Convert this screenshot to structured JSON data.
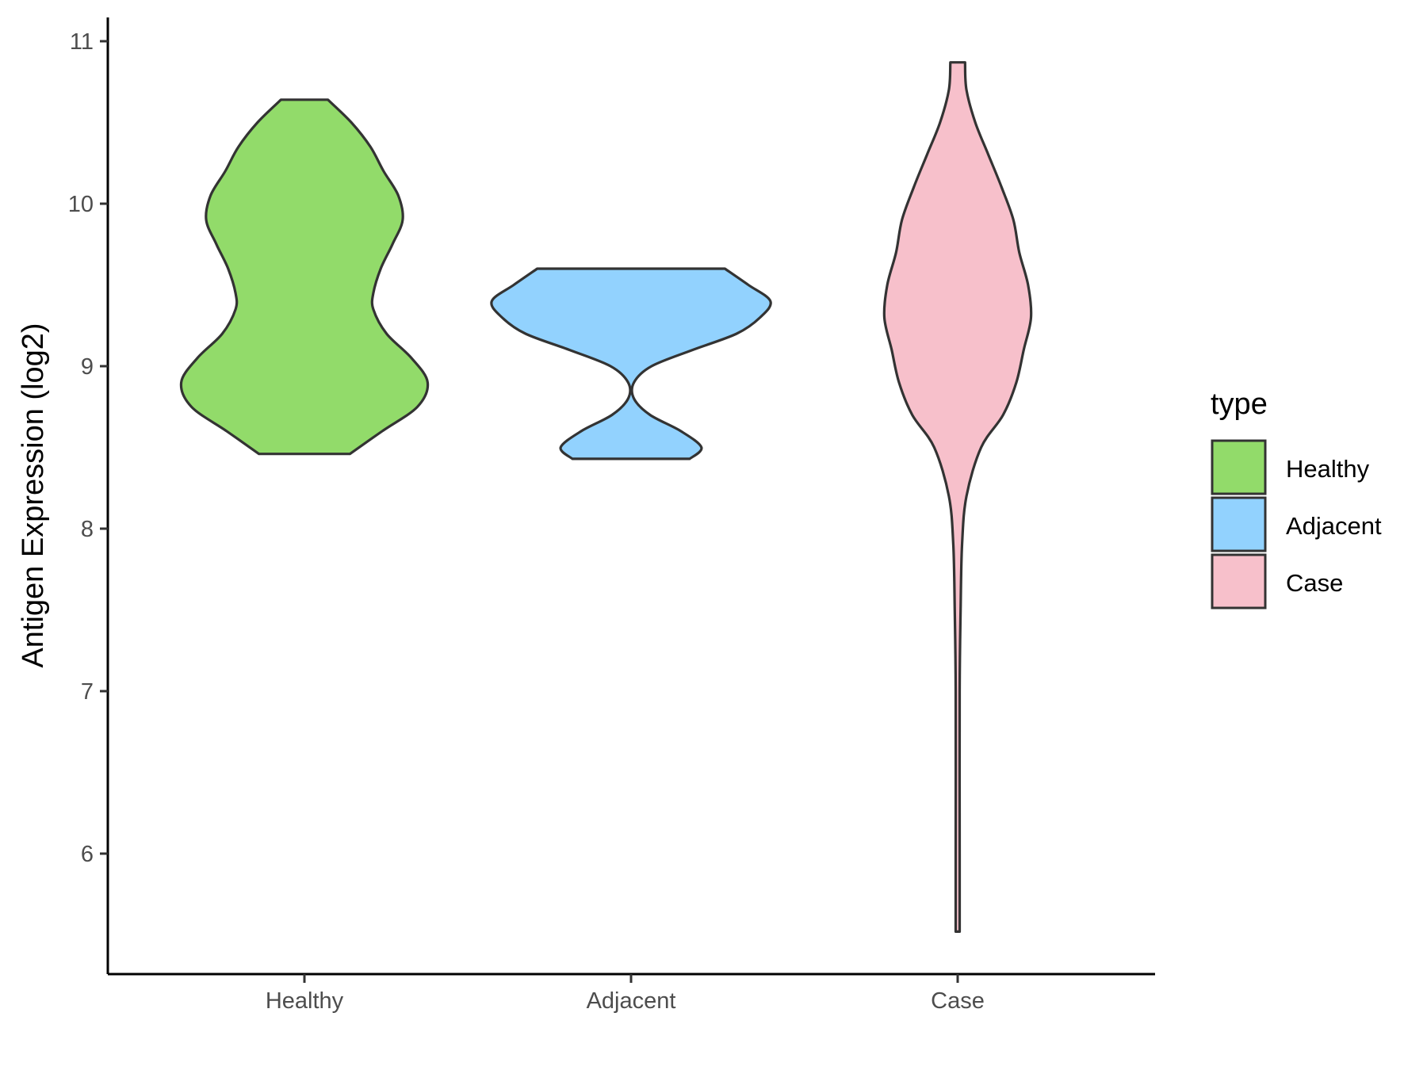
{
  "chart_data": {
    "type": "violin",
    "title": "",
    "xlabel": "",
    "ylabel": "Antigen Expression (log2)",
    "ylim": [
      5.3,
      11.15
    ],
    "yticks": [
      6,
      7,
      8,
      9,
      10,
      11
    ],
    "categories": [
      "Healthy",
      "Adjacent",
      "Case"
    ],
    "legend": {
      "title": "type",
      "position": "right",
      "entries": [
        "Healthy",
        "Adjacent",
        "Case"
      ]
    },
    "colors": {
      "Healthy": "#92db6a",
      "Adjacent": "#92d2fe",
      "Case": "#f7c0cb",
      "outline": "#333333"
    },
    "series": [
      {
        "name": "Healthy",
        "min": 8.46,
        "max": 10.64,
        "density": [
          [
            8.46,
            0.31
          ],
          [
            8.6,
            0.53
          ],
          [
            8.75,
            0.77
          ],
          [
            8.9,
            0.84
          ],
          [
            9.05,
            0.73
          ],
          [
            9.2,
            0.56
          ],
          [
            9.35,
            0.47
          ],
          [
            9.45,
            0.47
          ],
          [
            9.6,
            0.52
          ],
          [
            9.75,
            0.6
          ],
          [
            9.9,
            0.67
          ],
          [
            10.05,
            0.64
          ],
          [
            10.2,
            0.54
          ],
          [
            10.35,
            0.45
          ],
          [
            10.5,
            0.32
          ],
          [
            10.64,
            0.16
          ]
        ]
      },
      {
        "name": "Adjacent",
        "min": 8.43,
        "max": 9.6,
        "density": [
          [
            8.43,
            0.4
          ],
          [
            8.5,
            0.48
          ],
          [
            8.6,
            0.34
          ],
          [
            8.7,
            0.13
          ],
          [
            8.8,
            0.02
          ],
          [
            8.9,
            0.02
          ],
          [
            9.0,
            0.14
          ],
          [
            9.1,
            0.42
          ],
          [
            9.2,
            0.72
          ],
          [
            9.3,
            0.88
          ],
          [
            9.4,
            0.95
          ],
          [
            9.5,
            0.8
          ],
          [
            9.6,
            0.64
          ]
        ]
      },
      {
        "name": "Case",
        "min": 5.52,
        "max": 10.87,
        "density": [
          [
            5.52,
            0.0
          ],
          [
            6.0,
            0.01
          ],
          [
            7.0,
            0.01
          ],
          [
            7.5,
            0.02
          ],
          [
            7.9,
            0.03
          ],
          [
            8.2,
            0.06
          ],
          [
            8.5,
            0.16
          ],
          [
            8.7,
            0.31
          ],
          [
            8.9,
            0.4
          ],
          [
            9.1,
            0.45
          ],
          [
            9.3,
            0.5
          ],
          [
            9.5,
            0.48
          ],
          [
            9.7,
            0.42
          ],
          [
            9.9,
            0.38
          ],
          [
            10.1,
            0.3
          ],
          [
            10.3,
            0.21
          ],
          [
            10.5,
            0.12
          ],
          [
            10.7,
            0.06
          ],
          [
            10.87,
            0.05
          ]
        ]
      }
    ]
  }
}
